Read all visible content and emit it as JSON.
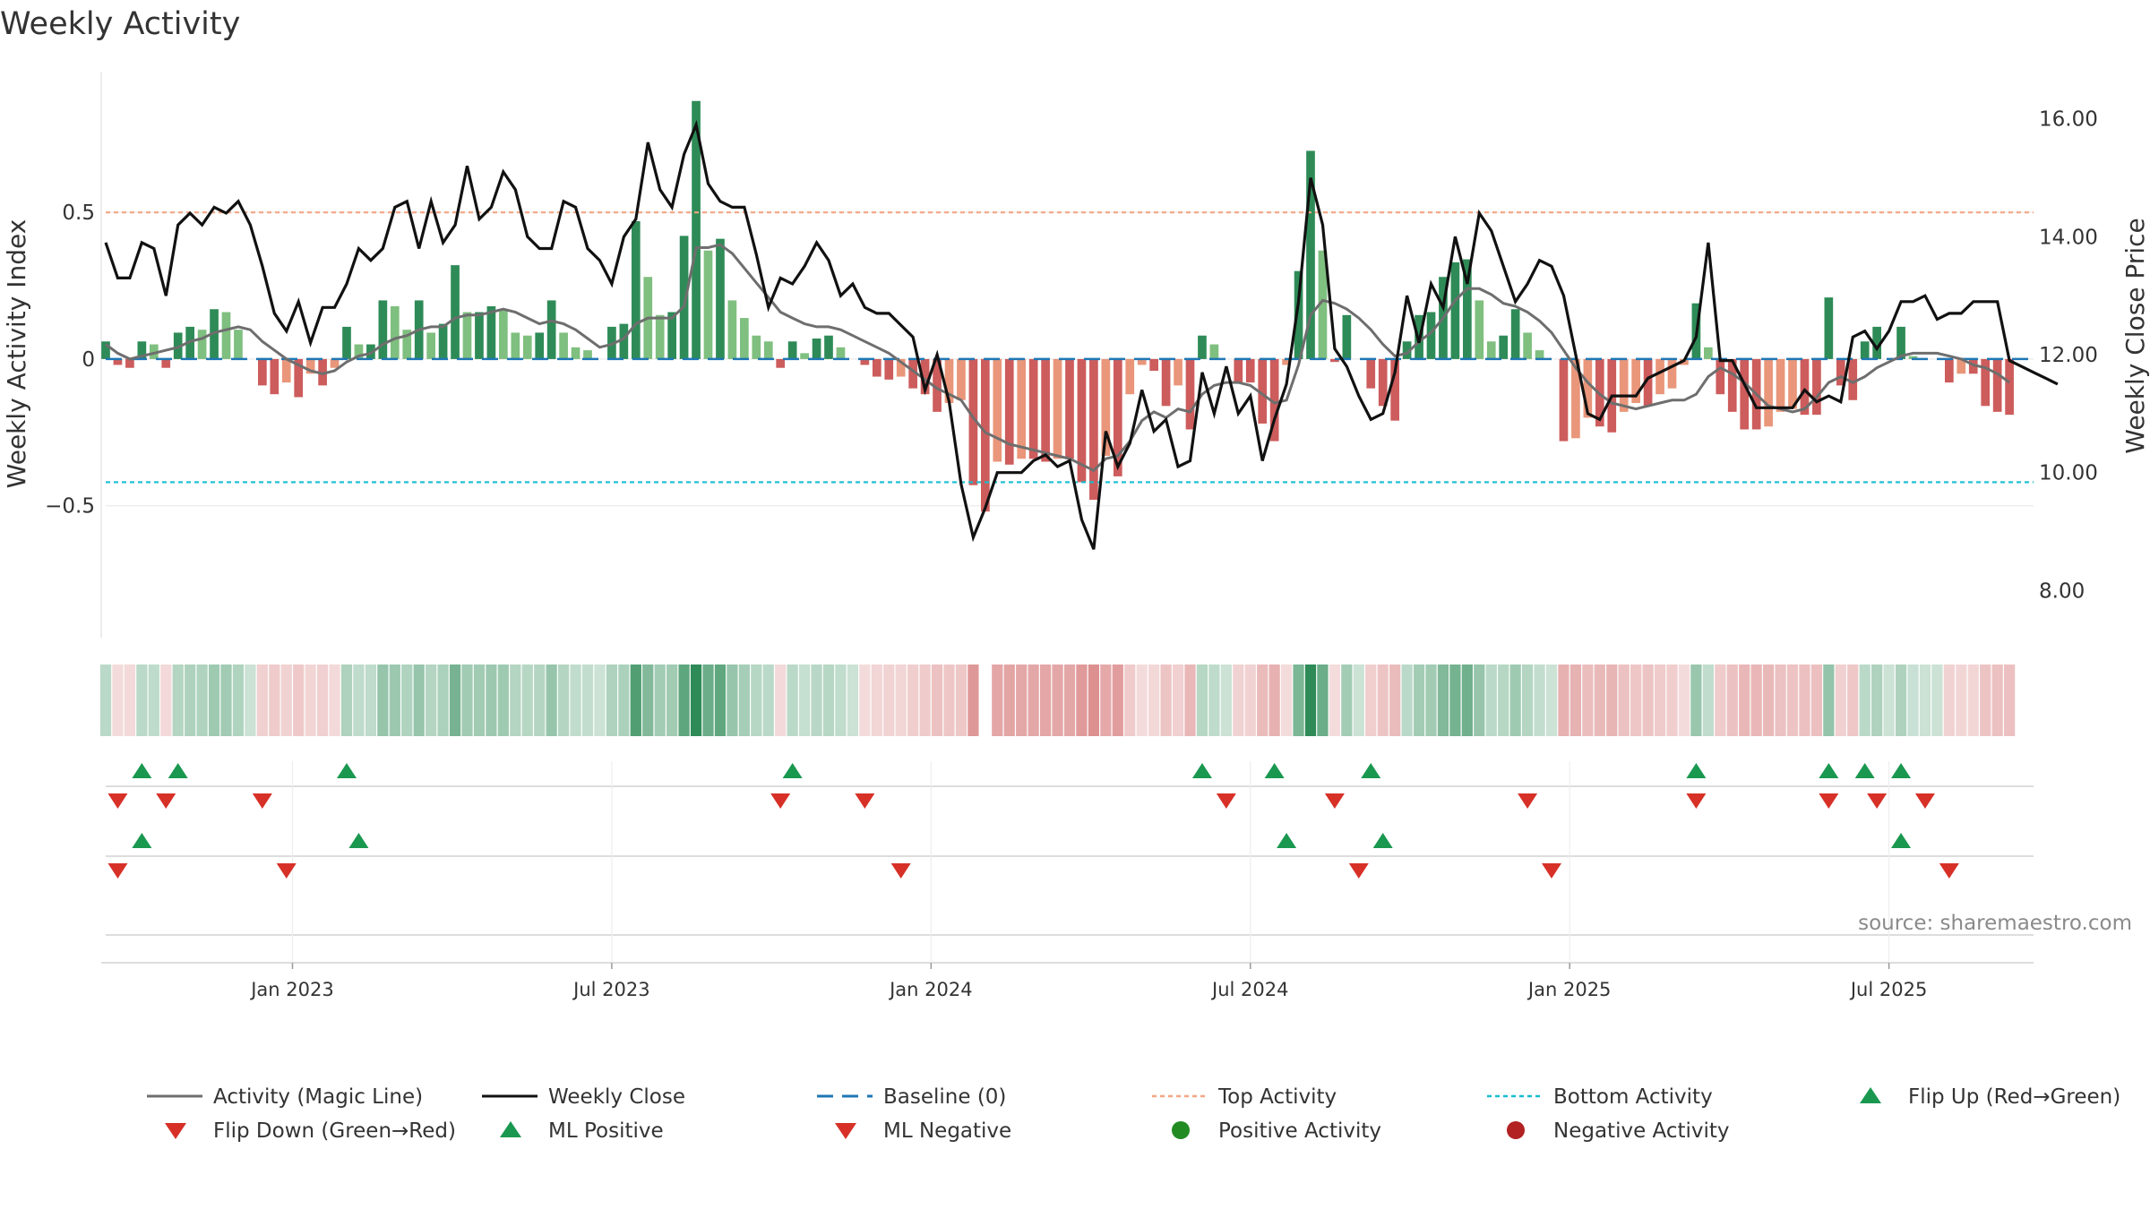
{
  "chart_data": {
    "type": "bar+line",
    "title": "Weekly Activity",
    "ylabel_left": "Weekly Activity Index",
    "ylabel_right": "Weekly Close Price",
    "source": "source: sharemaestro.com",
    "left_axis": {
      "ylim": [
        -0.95,
        0.98
      ],
      "ticks": [
        0.5,
        0,
        -0.5
      ],
      "tick_labels": [
        "0.5",
        "0",
        "−0.5"
      ]
    },
    "right_axis": {
      "ylim": [
        7.2,
        16.8
      ],
      "ticks": [
        16,
        14,
        12,
        10,
        8
      ],
      "tick_labels": [
        "16.00",
        "14.00",
        "12.00",
        "10.00",
        "8.00"
      ]
    },
    "x_axis": {
      "range_weeks": [
        0,
        160
      ],
      "ticks": [
        15.5,
        42,
        68.5,
        95,
        121.5,
        148
      ],
      "tick_labels": [
        "Jan 2023",
        "Jul 2023",
        "Jan 2024",
        "Jul 2024",
        "Jan 2025",
        "Jul 2025"
      ]
    },
    "reference_lines": {
      "baseline": 0,
      "top_activity": 0.5,
      "bottom_activity": -0.42
    },
    "colors": {
      "pos_strong": "#2e8b57",
      "pos_weak": "#7fbf7f",
      "neg_strong": "#cd5c5c",
      "neg_weak": "#e9967a",
      "magic": "#6e6e6e",
      "close": "#111111",
      "baseline": "#1f77b4",
      "top": "#f4a582",
      "bottom": "#17becf",
      "flip_up": "#1a9850",
      "flip_down": "#d73027",
      "pos_activity": "#228b22",
      "neg_activity": "#b22222"
    },
    "activity": [
      0.06,
      -0.02,
      -0.03,
      0.06,
      0.05,
      -0.03,
      0.09,
      0.11,
      0.1,
      0.17,
      0.16,
      0.1,
      0.0,
      -0.09,
      -0.12,
      -0.08,
      -0.13,
      -0.05,
      -0.09,
      -0.03,
      0.11,
      0.05,
      0.05,
      0.2,
      0.18,
      0.1,
      0.2,
      0.09,
      0.12,
      0.32,
      0.16,
      0.16,
      0.18,
      0.17,
      0.09,
      0.08,
      0.09,
      0.2,
      0.09,
      0.04,
      0.03,
      0.0,
      0.11,
      0.12,
      0.47,
      0.28,
      0.15,
      0.16,
      0.42,
      0.88,
      0.37,
      0.41,
      0.2,
      0.14,
      0.08,
      0.06,
      -0.03,
      0.06,
      0.02,
      0.07,
      0.08,
      0.04,
      0.0,
      -0.02,
      -0.06,
      -0.07,
      -0.06,
      -0.1,
      -0.12,
      -0.18,
      -0.15,
      -0.14,
      -0.43,
      -0.52,
      -0.35,
      -0.36,
      -0.34,
      -0.34,
      -0.35,
      -0.34,
      -0.34,
      -0.42,
      -0.48,
      -0.33,
      -0.4,
      -0.12,
      -0.02,
      -0.04,
      -0.16,
      -0.09,
      -0.24,
      0.08,
      0.05,
      0.0,
      -0.08,
      -0.08,
      -0.22,
      -0.28,
      -0.02,
      0.3,
      0.71,
      0.37,
      -0.01,
      0.15,
      0.0,
      -0.1,
      -0.16,
      -0.21,
      0.06,
      0.15,
      0.16,
      0.28,
      0.33,
      0.34,
      0.2,
      0.06,
      0.08,
      0.17,
      0.09,
      0.03,
      0.0,
      -0.28,
      -0.27,
      -0.2,
      -0.23,
      -0.25,
      -0.18,
      -0.15,
      -0.16,
      -0.12,
      -0.1,
      -0.02,
      0.19,
      0.04,
      -0.12,
      -0.18,
      -0.24,
      -0.24,
      -0.23,
      -0.18,
      -0.17,
      -0.19,
      -0.19,
      0.21,
      -0.09,
      -0.14,
      0.06,
      0.11,
      0.0,
      0.11,
      0.01,
      0.0,
      0.0,
      -0.08,
      -0.05,
      -0.05,
      -0.16,
      -0.18,
      -0.19
    ],
    "magic_line": [
      0.05,
      0.02,
      0.0,
      0.01,
      0.02,
      0.03,
      0.04,
      0.06,
      0.07,
      0.09,
      0.1,
      0.11,
      0.1,
      0.06,
      0.03,
      0.0,
      -0.02,
      -0.04,
      -0.05,
      -0.04,
      -0.01,
      0.01,
      0.02,
      0.05,
      0.07,
      0.08,
      0.1,
      0.11,
      0.11,
      0.14,
      0.15,
      0.15,
      0.16,
      0.17,
      0.16,
      0.14,
      0.12,
      0.13,
      0.12,
      0.1,
      0.07,
      0.04,
      0.05,
      0.07,
      0.12,
      0.14,
      0.14,
      0.14,
      0.18,
      0.38,
      0.38,
      0.39,
      0.36,
      0.31,
      0.26,
      0.21,
      0.16,
      0.14,
      0.12,
      0.11,
      0.11,
      0.1,
      0.08,
      0.06,
      0.04,
      0.02,
      -0.01,
      -0.04,
      -0.07,
      -0.1,
      -0.12,
      -0.14,
      -0.2,
      -0.25,
      -0.27,
      -0.29,
      -0.3,
      -0.31,
      -0.32,
      -0.33,
      -0.34,
      -0.36,
      -0.38,
      -0.34,
      -0.33,
      -0.28,
      -0.21,
      -0.18,
      -0.2,
      -0.17,
      -0.18,
      -0.12,
      -0.09,
      -0.08,
      -0.08,
      -0.09,
      -0.12,
      -0.15,
      -0.14,
      -0.02,
      0.15,
      0.2,
      0.19,
      0.17,
      0.14,
      0.1,
      0.05,
      0.01,
      0.02,
      0.06,
      0.09,
      0.14,
      0.2,
      0.24,
      0.24,
      0.22,
      0.19,
      0.18,
      0.16,
      0.13,
      0.09,
      0.03,
      -0.03,
      -0.08,
      -0.12,
      -0.15,
      -0.16,
      -0.17,
      -0.16,
      -0.15,
      -0.14,
      -0.14,
      -0.12,
      -0.06,
      -0.03,
      -0.05,
      -0.08,
      -0.12,
      -0.16,
      -0.17,
      -0.18,
      -0.17,
      -0.13,
      -0.08,
      -0.06,
      -0.08,
      -0.06,
      -0.03,
      -0.01,
      0.01,
      0.02,
      0.02,
      0.02,
      0.01,
      0.0,
      -0.02,
      -0.03,
      -0.05,
      -0.08
    ],
    "weekly_close": [
      13.9,
      13.3,
      13.3,
      13.9,
      13.8,
      13.0,
      14.2,
      14.4,
      14.2,
      14.5,
      14.4,
      14.6,
      14.2,
      13.5,
      12.7,
      12.4,
      12.9,
      12.2,
      12.8,
      12.8,
      13.2,
      13.8,
      13.6,
      13.8,
      14.5,
      14.6,
      13.8,
      14.6,
      13.9,
      14.2,
      15.2,
      14.3,
      14.5,
      15.1,
      14.8,
      14.0,
      13.8,
      13.8,
      14.6,
      14.5,
      13.8,
      13.6,
      13.2,
      14.0,
      14.3,
      15.6,
      14.8,
      14.5,
      15.4,
      15.9,
      14.9,
      14.6,
      14.5,
      14.5,
      13.7,
      12.8,
      13.3,
      13.2,
      13.5,
      13.9,
      13.6,
      13.0,
      13.2,
      12.8,
      12.7,
      12.7,
      12.5,
      12.3,
      11.4,
      12.0,
      11.2,
      9.8,
      8.9,
      9.4,
      10.0,
      10.0,
      10.0,
      10.2,
      10.3,
      10.1,
      10.2,
      9.2,
      8.7,
      10.7,
      10.1,
      10.5,
      11.4,
      10.7,
      10.9,
      10.1,
      10.2,
      11.7,
      11.0,
      11.8,
      11.0,
      11.3,
      10.2,
      10.9,
      11.5,
      12.9,
      15.0,
      14.2,
      12.1,
      11.8,
      11.3,
      10.9,
      11.0,
      11.7,
      13.0,
      12.2,
      13.2,
      12.8,
      14.0,
      13.2,
      14.4,
      14.1,
      13.5,
      12.9,
      13.2,
      13.6,
      13.5,
      13.0,
      12.0,
      11.0,
      10.9,
      11.3,
      11.3,
      11.3,
      11.6,
      11.7,
      11.8,
      11.9,
      12.3,
      13.9,
      11.9,
      11.9,
      11.5,
      11.1,
      11.1,
      11.1,
      11.1,
      11.4,
      11.2,
      11.3,
      11.2,
      12.3,
      12.4,
      12.1,
      12.4,
      12.9,
      12.9,
      13.0,
      12.6,
      12.7,
      12.7,
      12.9,
      12.9,
      12.9,
      11.9,
      11.8,
      11.7,
      11.6,
      11.5
    ],
    "flip_up": [
      3,
      6,
      20,
      57,
      91,
      97,
      105,
      132,
      143,
      146,
      149
    ],
    "flip_down": [
      1,
      5,
      13,
      56,
      63,
      93,
      102,
      118,
      132,
      143,
      147,
      151
    ],
    "ml_positive": [
      3,
      21,
      98,
      106,
      149
    ],
    "ml_negative": [
      1,
      15,
      66,
      104,
      120,
      153
    ],
    "gap_week": 73,
    "legend": [
      "Activity (Magic Line)",
      "Weekly Close",
      "Baseline (0)",
      "Top Activity",
      "Bottom Activity",
      "Flip Up (Red→Green)",
      "Flip Down (Green→Red)",
      "ML Positive",
      "ML Negative",
      "Positive Activity",
      "Negative Activity"
    ]
  }
}
